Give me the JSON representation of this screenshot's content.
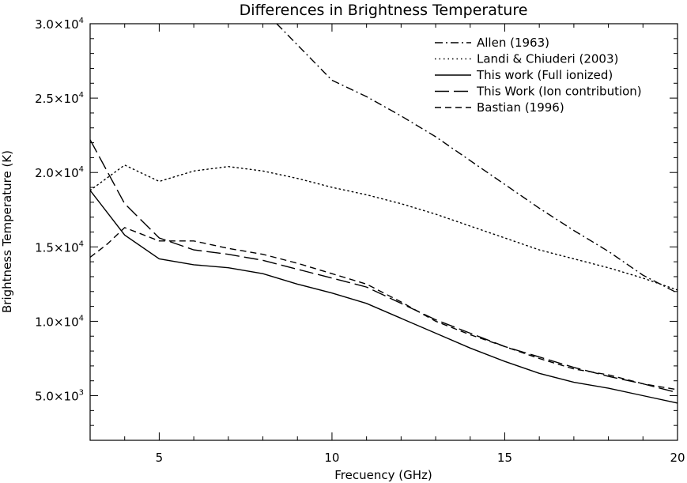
{
  "chart_data": {
    "type": "line",
    "title": "Differences in Brightness Temperature",
    "xlabel": "Frecuency (GHz)",
    "ylabel": "Brightness Temperature (K)",
    "xlim": [
      3,
      20
    ],
    "ylim": [
      2000,
      30000
    ],
    "grid": false,
    "legend_position": "top-right",
    "x_ticks": [
      {
        "value": 5,
        "label": "5"
      },
      {
        "value": 10,
        "label": "10"
      },
      {
        "value": 15,
        "label": "15"
      },
      {
        "value": 20,
        "label": "20"
      }
    ],
    "y_ticks": [
      {
        "value": 5000,
        "mantissa": "5.0×10",
        "exp": "3"
      },
      {
        "value": 10000,
        "mantissa": "1.0×10",
        "exp": "4"
      },
      {
        "value": 15000,
        "mantissa": "1.5×10",
        "exp": "4"
      },
      {
        "value": 20000,
        "mantissa": "2.0×10",
        "exp": "4"
      },
      {
        "value": 25000,
        "mantissa": "2.5×10",
        "exp": "4"
      },
      {
        "value": 30000,
        "mantissa": "3.0×10",
        "exp": "4"
      }
    ],
    "series": [
      {
        "name": "Allen (1963)",
        "style": "dashdot",
        "x": [
          8.4,
          10,
          11,
          12,
          13,
          14,
          15,
          16,
          17,
          18,
          19,
          20
        ],
        "y": [
          30000,
          26200,
          25100,
          23800,
          22400,
          20800,
          19200,
          17600,
          16100,
          14700,
          13100,
          11900
        ]
      },
      {
        "name": "Landi & Chiuderi (2003)",
        "style": "dotted",
        "x": [
          3,
          4,
          5,
          6,
          7,
          8,
          9,
          10,
          11,
          12,
          13,
          14,
          15,
          16,
          17,
          18,
          19,
          20
        ],
        "y": [
          18800,
          20500,
          19400,
          20100,
          20400,
          20100,
          19600,
          19000,
          18500,
          17900,
          17200,
          16400,
          15600,
          14800,
          14200,
          13600,
          12900,
          12100
        ]
      },
      {
        "name": "This work (Full ionized)",
        "style": "solid",
        "x": [
          3,
          4,
          5,
          6,
          7,
          8,
          9,
          10,
          11,
          12,
          13,
          14,
          15,
          16,
          17,
          18,
          19,
          20
        ],
        "y": [
          18800,
          15800,
          14200,
          13800,
          13600,
          13200,
          12500,
          11900,
          11200,
          10200,
          9200,
          8200,
          7300,
          6500,
          5900,
          5500,
          5000,
          4500
        ]
      },
      {
        "name": "This Work (Ion contribution)",
        "style": "longdash",
        "x": [
          3,
          4,
          5,
          6,
          7,
          8,
          9,
          10,
          11,
          12,
          13,
          14,
          15,
          16,
          17,
          18,
          19,
          20
        ],
        "y": [
          22200,
          17900,
          15600,
          14800,
          14500,
          14100,
          13500,
          12900,
          12300,
          11200,
          10100,
          9200,
          8300,
          7600,
          6900,
          6300,
          5800,
          5200
        ]
      },
      {
        "name": "Bastian (1996)",
        "style": "shortdash",
        "x": [
          3,
          3.5,
          4,
          5,
          6,
          7,
          8,
          9,
          10,
          11,
          12,
          13,
          14,
          15,
          16,
          17,
          18,
          19,
          20
        ],
        "y": [
          14300,
          15200,
          16300,
          15400,
          15400,
          14900,
          14500,
          13900,
          13200,
          12500,
          11300,
          10000,
          9100,
          8300,
          7500,
          6800,
          6400,
          5800,
          5400
        ]
      }
    ]
  }
}
